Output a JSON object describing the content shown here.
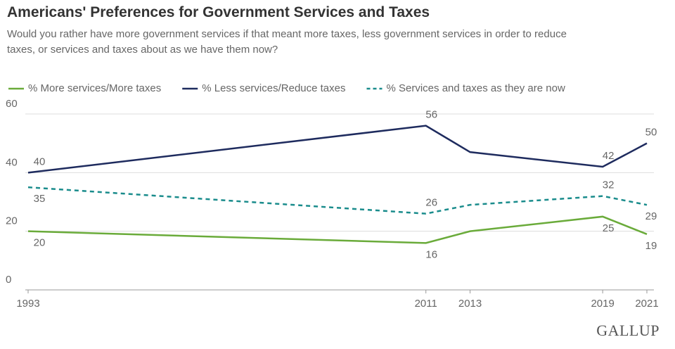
{
  "chart_data": {
    "type": "line",
    "title": "Americans' Preferences for Government Services and Taxes",
    "subtitle": "Would you rather have more government services if that meant more taxes, less government services in order to reduce taxes, or services and taxes about as we have them now?",
    "x": [
      1993,
      2011,
      2013,
      2019,
      2021
    ],
    "xlim": [
      1993,
      2021
    ],
    "xticks": [
      1993,
      2011,
      2013,
      2019,
      2021
    ],
    "ylim": [
      0,
      60
    ],
    "yticks": [
      0,
      20,
      40,
      60
    ],
    "grid": true,
    "legend": "top",
    "series": [
      {
        "name": "% More services/More taxes",
        "color": "#6aab3a",
        "dash": false,
        "values": [
          20,
          16,
          20,
          25,
          19
        ],
        "value_labels": [
          "20",
          "16",
          null,
          "25",
          "19"
        ]
      },
      {
        "name": "% Less services/Reduce taxes",
        "color": "#1e2b5e",
        "dash": false,
        "values": [
          40,
          56,
          47,
          42,
          50
        ],
        "value_labels": [
          "40",
          "56",
          null,
          "42",
          "50"
        ]
      },
      {
        "name": "% Services and taxes as they are now",
        "color": "#1a8c8c",
        "dash": true,
        "values": [
          35,
          26,
          29,
          32,
          29
        ],
        "value_labels": [
          "35",
          "26",
          null,
          "32",
          "29"
        ]
      }
    ],
    "source": "GALLUP"
  }
}
